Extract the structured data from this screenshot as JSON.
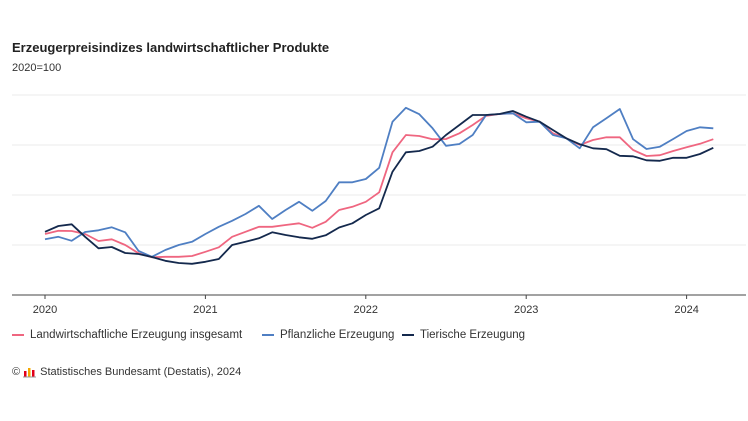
{
  "chart_data": {
    "type": "line",
    "title": "Erzeugerpreisindizes landwirtschaftlicher Produkte",
    "subtitle": "2020=100",
    "xlabel": "",
    "ylabel": "",
    "ylim": [
      80,
      160
    ],
    "y_gridlines": [
      100,
      120,
      140,
      160
    ],
    "y_tick_labels_shown": false,
    "grid": true,
    "legend_position": "bottom",
    "x_ticks": [
      "2020",
      "2021",
      "2022",
      "2023",
      "2024"
    ],
    "x": [
      "2020-01",
      "2020-02",
      "2020-03",
      "2020-04",
      "2020-05",
      "2020-06",
      "2020-07",
      "2020-08",
      "2020-09",
      "2020-10",
      "2020-11",
      "2020-12",
      "2021-01",
      "2021-02",
      "2021-03",
      "2021-04",
      "2021-05",
      "2021-06",
      "2021-07",
      "2021-08",
      "2021-09",
      "2021-10",
      "2021-11",
      "2021-12",
      "2022-01",
      "2022-02",
      "2022-03",
      "2022-04",
      "2022-05",
      "2022-06",
      "2022-07",
      "2022-08",
      "2022-09",
      "2022-10",
      "2022-11",
      "2022-12",
      "2023-01",
      "2023-02",
      "2023-03",
      "2023-04",
      "2023-05",
      "2023-06",
      "2023-07",
      "2023-08",
      "2023-09",
      "2023-10",
      "2023-11",
      "2023-12",
      "2024-01",
      "2024-02",
      "2024-03"
    ],
    "series": [
      {
        "name": "Landwirtschaftliche Erzeugung insgesamt",
        "color": "#ef6680",
        "values": [
          104.4,
          105.7,
          105.6,
          104.4,
          101.6,
          102.3,
          100,
          96.7,
          95.1,
          95.3,
          95.3,
          95.6,
          97.3,
          99.1,
          103.3,
          105.3,
          107.3,
          107.3,
          108,
          108.7,
          106.9,
          109.3,
          114,
          115.3,
          117.3,
          121.1,
          137.1,
          144,
          143.6,
          142.3,
          142.4,
          144.7,
          148,
          151.7,
          152.4,
          152.7,
          150.7,
          149.3,
          144.7,
          142.7,
          140,
          142,
          143.1,
          143.1,
          138,
          135.6,
          135.9,
          137.6,
          139.1,
          140.5,
          142.3
        ]
      },
      {
        "name": "Pflanzliche Erzeugung",
        "color": "#4f7fc3",
        "values": [
          102.3,
          103.3,
          101.7,
          105.2,
          105.9,
          107.1,
          105.1,
          97.6,
          95.3,
          98,
          100,
          101.3,
          104.4,
          107.3,
          109.7,
          112.4,
          115.7,
          110.4,
          114,
          117.3,
          113.7,
          117.6,
          125.1,
          125.1,
          126.4,
          130.9,
          149.3,
          154.9,
          152.3,
          146.7,
          139.7,
          140.4,
          144,
          152,
          152.4,
          152.7,
          149.1,
          149.3,
          144,
          142.7,
          138.7,
          147.1,
          150.7,
          154.4,
          142.3,
          138.4,
          139.3,
          142.4,
          145.6,
          147.1,
          146.7
        ]
      },
      {
        "name": "Tierische Erzeugung",
        "color": "#14294d",
        "values": [
          105.3,
          107.6,
          108.3,
          103.3,
          98.7,
          99.2,
          96.8,
          96.4,
          95.2,
          93.7,
          92.8,
          92.5,
          93.3,
          94.4,
          100,
          101.3,
          102.7,
          105.1,
          104,
          103.1,
          102.5,
          103.9,
          107,
          108.7,
          112,
          114.7,
          129.3,
          137.1,
          137.6,
          139.3,
          144,
          148,
          152,
          152,
          152.4,
          153.6,
          151.3,
          149.3,
          146,
          142.7,
          140.3,
          138.7,
          138.3,
          135.7,
          135.5,
          133.9,
          133.7,
          134.9,
          134.9,
          136.4,
          138.9
        ]
      }
    ]
  },
  "source": {
    "text": "Statistisches Bundesamt (Destatis), 2024",
    "copyright": "©"
  }
}
